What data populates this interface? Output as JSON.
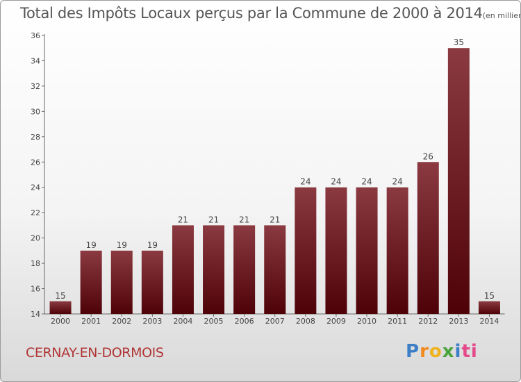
{
  "header": {
    "title": "Total des Impôts Locaux perçus par la Commune de 2000 à 2014",
    "unit": "(en milliers d'€)"
  },
  "footer": {
    "commune": "CERNAY-EN-DORMOIS",
    "logo_letters": [
      "P",
      "r",
      "o",
      "x",
      "i",
      "ti"
    ]
  },
  "colors": {
    "bar_top": "#8a3a40",
    "bar_bottom": "#4e0208",
    "commune_text": "#b03535"
  },
  "chart_data": {
    "type": "bar",
    "title": "Total des Impôts Locaux perçus par la Commune de 2000 à 2014",
    "xlabel": "",
    "ylabel": "",
    "categories": [
      "2000",
      "2001",
      "2002",
      "2003",
      "2004",
      "2005",
      "2006",
      "2007",
      "2008",
      "2009",
      "2010",
      "2011",
      "2012",
      "2013",
      "2014"
    ],
    "values": [
      15,
      19,
      19,
      19,
      21,
      21,
      21,
      21,
      24,
      24,
      24,
      24,
      26,
      35,
      15
    ],
    "ylim": [
      14,
      36
    ],
    "yticks": [
      14,
      16,
      18,
      20,
      22,
      24,
      26,
      28,
      30,
      32,
      34,
      36
    ],
    "grid": false
  }
}
